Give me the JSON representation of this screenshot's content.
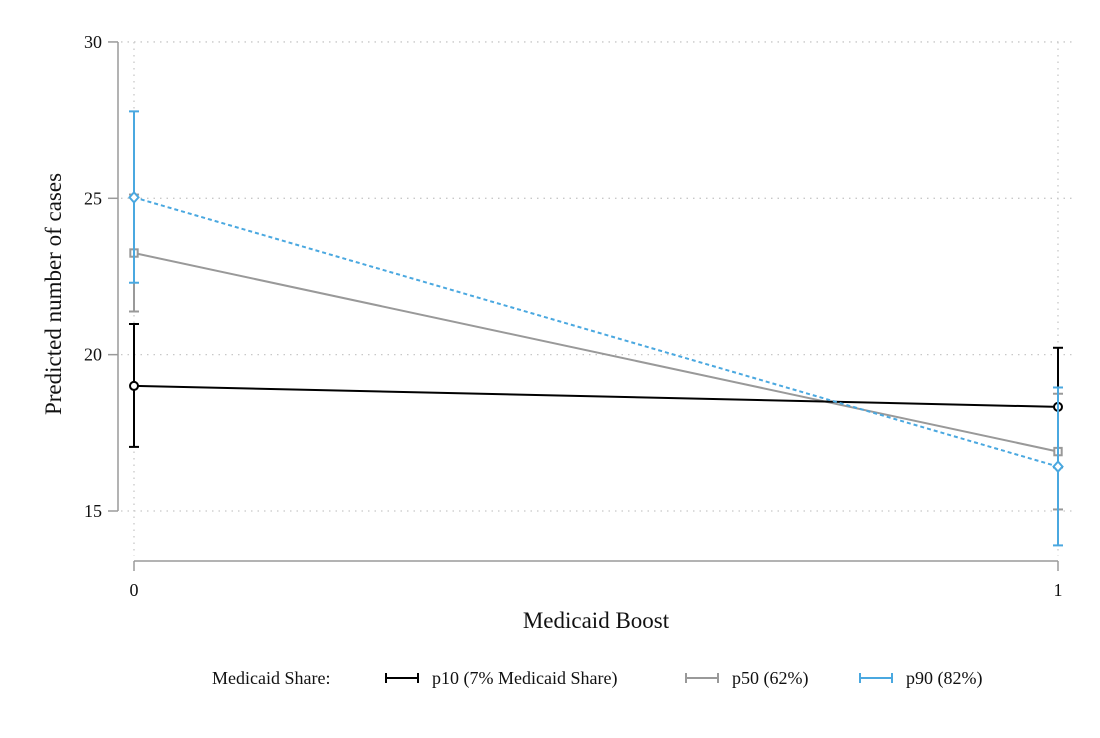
{
  "chart_data": {
    "type": "line",
    "title": "",
    "xlabel": "Medicaid Boost",
    "ylabel": "Predicted number of cases",
    "x": [
      0,
      1
    ],
    "xticks": [
      "0",
      "1"
    ],
    "yticks": [
      "15",
      "20",
      "25",
      "30"
    ],
    "ylim": [
      13.4,
      30
    ],
    "xlim": [
      0,
      1
    ],
    "grid": "horizontal dotted",
    "legend_position": "bottom",
    "legend_title": "Medicaid Share:",
    "series": [
      {
        "name": "p10 (7% Medicaid Share)",
        "color": "#000000",
        "marker": "circle",
        "line_style": "solid",
        "values": [
          19.0,
          18.33
        ],
        "ci_lower": [
          17.05,
          16.4
        ],
        "ci_upper": [
          20.98,
          20.22
        ]
      },
      {
        "name": "p50 (62%)",
        "color": "#999999",
        "marker": "square",
        "line_style": "solid",
        "values": [
          23.25,
          16.9
        ],
        "ci_lower": [
          21.38,
          15.05
        ],
        "ci_upper": [
          25.12,
          18.75
        ]
      },
      {
        "name": "p90 (82%)",
        "color": "#4aa8e0",
        "marker": "diamond",
        "line_style": "dotted",
        "values": [
          25.03,
          16.42
        ],
        "ci_lower": [
          22.3,
          13.9
        ],
        "ci_upper": [
          27.78,
          18.95
        ]
      }
    ]
  }
}
